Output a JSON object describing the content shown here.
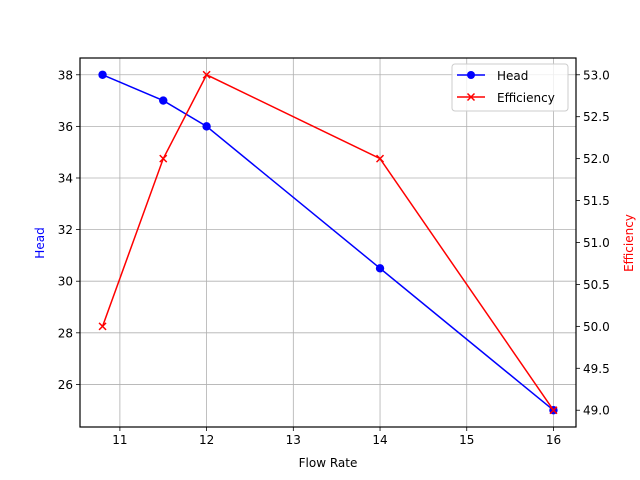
{
  "chart_data": {
    "type": "line",
    "title": "",
    "xlabel": "Flow Rate",
    "ylabel": "Head",
    "y2label": "Efficiency",
    "xlim": [
      10.54,
      16.26
    ],
    "ylim": [
      24.35,
      38.65
    ],
    "y2lim": [
      48.8,
      53.2
    ],
    "grid": true,
    "legend_position": "upper right",
    "x": [
      10.8,
      11.5,
      12,
      14,
      16
    ],
    "series": [
      {
        "name": "Head",
        "axis": "left",
        "color": "#0000ff",
        "marker": "circle",
        "values": [
          38,
          37,
          36,
          30.5,
          25
        ]
      },
      {
        "name": "Efficiency",
        "axis": "right",
        "color": "#ff0000",
        "marker": "x",
        "values": [
          50,
          52,
          53,
          52,
          49
        ]
      }
    ],
    "xticks": [
      11,
      12,
      13,
      14,
      15,
      16
    ],
    "xtick_labels": [
      "11",
      "12",
      "13",
      "14",
      "15",
      "16"
    ],
    "yticks": [
      26,
      28,
      30,
      32,
      34,
      36,
      38
    ],
    "ytick_labels": [
      "26",
      "28",
      "30",
      "32",
      "34",
      "36",
      "38"
    ],
    "y2ticks": [
      49.0,
      49.5,
      50.0,
      50.5,
      51.0,
      51.5,
      52.0,
      52.5,
      53.0
    ],
    "y2tick_labels": [
      "49.0",
      "49.5",
      "50.0",
      "50.5",
      "51.0",
      "51.5",
      "52.0",
      "52.5",
      "53.0"
    ]
  },
  "legend": {
    "items": [
      {
        "label": "Head",
        "color": "#0000ff"
      },
      {
        "label": "Efficiency",
        "color": "#ff0000"
      }
    ]
  }
}
